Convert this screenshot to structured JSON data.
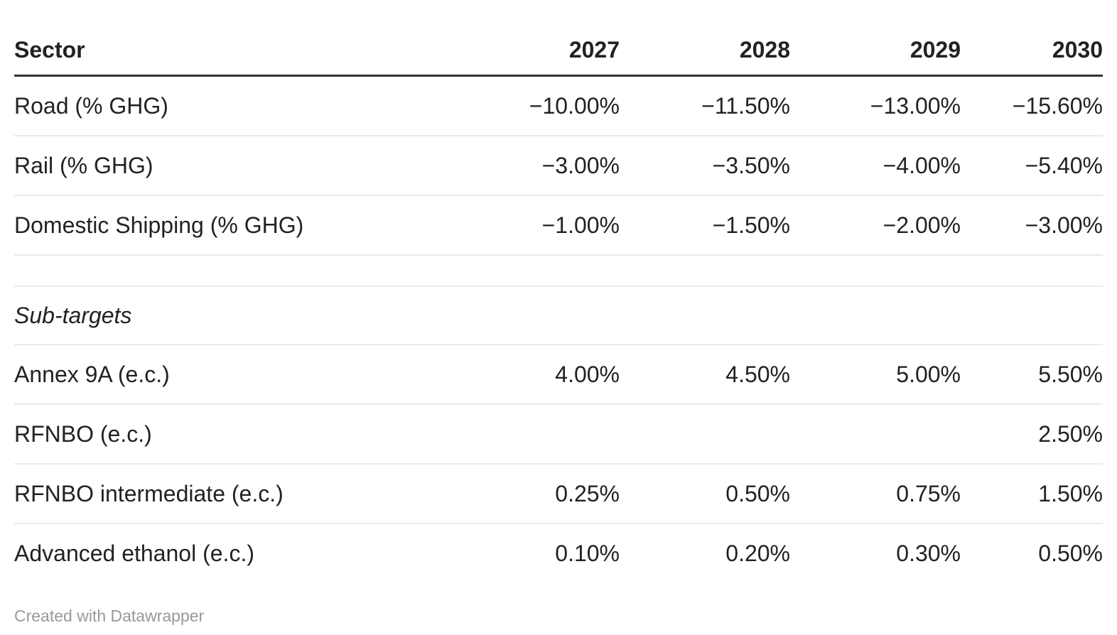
{
  "chart_data": {
    "type": "table",
    "columns": [
      "Sector",
      "2027",
      "2028",
      "2029",
      "2030"
    ],
    "rows": [
      {
        "type": "data",
        "label": "Road (% GHG)",
        "values": [
          "−10.00%",
          "−11.50%",
          "−13.00%",
          "−15.60%"
        ]
      },
      {
        "type": "data",
        "label": "Rail (% GHG)",
        "values": [
          "−3.00%",
          "−3.50%",
          "−4.00%",
          "−5.40%"
        ]
      },
      {
        "type": "data",
        "label": "Domestic Shipping (% GHG)",
        "values": [
          "−1.00%",
          "−1.50%",
          "−2.00%",
          "−3.00%"
        ]
      },
      {
        "type": "spacer",
        "label": "",
        "values": [
          "",
          "",
          "",
          ""
        ]
      },
      {
        "type": "section",
        "label": "Sub-targets",
        "values": [
          "",
          "",
          "",
          ""
        ]
      },
      {
        "type": "data",
        "label": "Annex 9A (e.c.)",
        "values": [
          "4.00%",
          "4.50%",
          "5.00%",
          "5.50%"
        ]
      },
      {
        "type": "data",
        "label": "RFNBO (e.c.)",
        "values": [
          "",
          "",
          "",
          "2.50%"
        ]
      },
      {
        "type": "data",
        "label": "RFNBO intermediate (e.c.)",
        "values": [
          "0.25%",
          "0.50%",
          "0.75%",
          "1.50%"
        ]
      },
      {
        "type": "data",
        "label": "Advanced ethanol (e.c.)",
        "values": [
          "0.10%",
          "0.20%",
          "0.30%",
          "0.50%"
        ]
      }
    ]
  },
  "footer": {
    "attribution": "Created with Datawrapper"
  },
  "colors": {
    "background": "#ffffff",
    "text": "#222222",
    "header_rule": "#333333",
    "row_divider": "#ebebeb",
    "footer_text": "#999999"
  }
}
